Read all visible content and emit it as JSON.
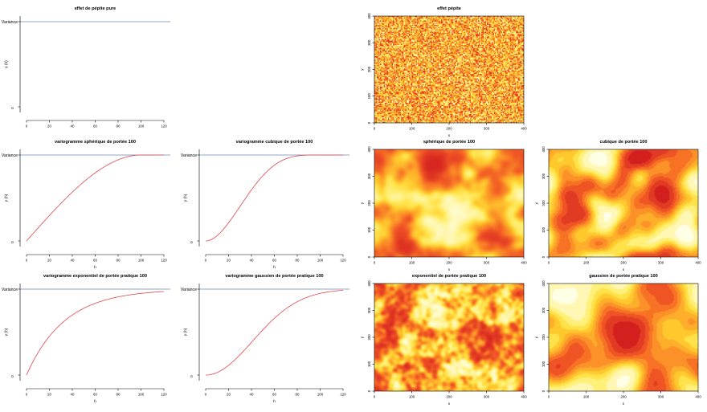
{
  "colors": {
    "curve": "#e0474c",
    "sill_line": "#8fa7c7",
    "axis": "#000000",
    "heat_low": "#ffffe6",
    "heat_high": "#d81e1e"
  },
  "chart_data": [
    {
      "type": "line",
      "title": "effet de pépite pure",
      "model": "nugget",
      "xlabel": "",
      "ylabel": "γ (h)",
      "sill_label": "Variance",
      "origin_label": "0",
      "xlim": [
        0,
        120
      ],
      "xticks": [
        "0",
        "20",
        "40",
        "60",
        "80",
        "100",
        "120"
      ],
      "x": [
        0,
        20,
        40,
        60,
        80,
        100,
        120
      ],
      "y": [
        1,
        1,
        1,
        1,
        1,
        1,
        1
      ]
    },
    {
      "type": "line",
      "title": "variogramme sphérique de portée 100",
      "model": "spherical",
      "xlabel": "h",
      "ylabel": "γ (h)",
      "sill_label": "Variance",
      "origin_label": "0",
      "xlim": [
        0,
        120
      ],
      "xticks": [
        "0",
        "20",
        "40",
        "60",
        "80",
        "100",
        "120"
      ],
      "x": [
        0,
        20,
        40,
        60,
        80,
        100,
        120
      ],
      "y": [
        0,
        0.3,
        0.57,
        0.8,
        0.94,
        1,
        1
      ]
    },
    {
      "type": "line",
      "title": "variogramme cubique de portée 100",
      "model": "cubic",
      "xlabel": "h",
      "ylabel": "γ (h)",
      "sill_label": "Variance",
      "origin_label": "0",
      "xlim": [
        0,
        120
      ],
      "xticks": [
        "0",
        "20",
        "40",
        "60",
        "80",
        "100",
        "120"
      ],
      "x": [
        0,
        20,
        40,
        60,
        80,
        100,
        120
      ],
      "y": [
        0,
        0.22,
        0.64,
        0.91,
        0.99,
        1,
        1
      ]
    },
    {
      "type": "line",
      "title": "variogramme exponentiel de portée pratique 100",
      "model": "exponential",
      "xlabel": "h",
      "ylabel": "γ (h)",
      "sill_label": "Variance",
      "origin_label": "0",
      "xlim": [
        0,
        120
      ],
      "xticks": [
        "0",
        "20",
        "40",
        "60",
        "80",
        "100",
        "120"
      ],
      "x": [
        0,
        20,
        40,
        60,
        80,
        100,
        120
      ],
      "y": [
        0,
        0.45,
        0.7,
        0.83,
        0.91,
        0.95,
        0.97
      ]
    },
    {
      "type": "line",
      "title": "variogramme gaussien de portée pratique 100",
      "model": "gaussian",
      "xlabel": "h",
      "ylabel": "γ (h)",
      "sill_label": "Variance",
      "origin_label": "0",
      "xlim": [
        0,
        120
      ],
      "xticks": [
        "0",
        "20",
        "40",
        "60",
        "80",
        "100",
        "120"
      ],
      "x": [
        0,
        20,
        40,
        60,
        80,
        100,
        120
      ],
      "y": [
        0,
        0.11,
        0.38,
        0.66,
        0.85,
        0.95,
        0.98
      ]
    },
    {
      "type": "heatmap",
      "title": "effet pépite",
      "model": "nugget",
      "xlabel": "x",
      "ylabel": "y",
      "xlim": [
        0,
        400
      ],
      "ylim": [
        0,
        400
      ],
      "xticks": [
        "0",
        "100",
        "200",
        "300",
        "400"
      ],
      "yticks": [
        "0",
        "100",
        "200",
        "300",
        "400"
      ]
    },
    {
      "type": "heatmap",
      "title": "sphérique de portée 100",
      "model": "spherical",
      "xlabel": "x",
      "ylabel": "y",
      "xlim": [
        0,
        400
      ],
      "ylim": [
        0,
        400
      ],
      "xticks": [
        "0",
        "100",
        "200",
        "300",
        "400"
      ],
      "yticks": [
        "0",
        "100",
        "200",
        "300",
        "400"
      ]
    },
    {
      "type": "heatmap",
      "title": "cubique de portée 100",
      "model": "cubic",
      "xlabel": "x",
      "ylabel": "y",
      "xlim": [
        0,
        400
      ],
      "ylim": [
        0,
        400
      ],
      "xticks": [
        "0",
        "100",
        "200",
        "300",
        "400"
      ],
      "yticks": [
        "0",
        "100",
        "200",
        "300",
        "400"
      ]
    },
    {
      "type": "heatmap",
      "title": "exponentiel de portée pratique 100",
      "model": "exponential",
      "xlabel": "x",
      "ylabel": "y",
      "xlim": [
        0,
        400
      ],
      "ylim": [
        0,
        400
      ],
      "xticks": [
        "0",
        "100",
        "200",
        "300",
        "400"
      ],
      "yticks": [
        "0",
        "100",
        "200",
        "300",
        "400"
      ]
    },
    {
      "type": "heatmap",
      "title": "gaussien de portée pratique 100",
      "model": "gaussian",
      "xlabel": "x",
      "ylabel": "y",
      "xlim": [
        0,
        400
      ],
      "ylim": [
        0,
        400
      ],
      "xticks": [
        "0",
        "100",
        "200",
        "300",
        "400"
      ],
      "yticks": [
        "0",
        "100",
        "200",
        "300",
        "400"
      ]
    }
  ]
}
